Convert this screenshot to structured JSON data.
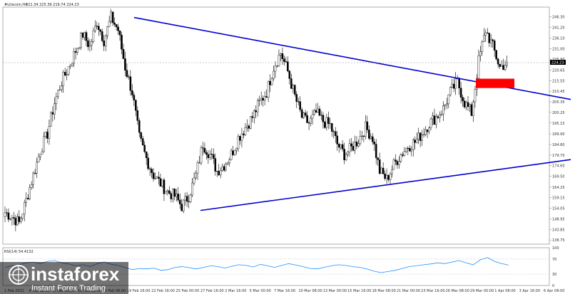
{
  "header": {
    "symbol": "#Litecoin,H4",
    "ohlc": "221.34 225.39 219.74 224.23"
  },
  "rsi_label": "RSI(14) 54.4132",
  "watermark": {
    "brand": "instaforex",
    "tagline": "Instant Forex Trading"
  },
  "colors": {
    "background": "#ffffff",
    "candles": "#000000",
    "trendlines": "#0000cc",
    "breakout_box": "#ff0000",
    "price_line": "#999999",
    "rsi_line": "#1e90ff",
    "current_price_badge": "#000000"
  },
  "chart_data": [
    {
      "type": "candlestick",
      "title": "#Litecoin,H4",
      "ylim": [
        136.75,
        251.0
      ],
      "y_ticks": [
        "246.30",
        "241.20",
        "236.10",
        "231.00",
        "225.90",
        "220.65",
        "215.55",
        "210.45",
        "205.35",
        "200.25",
        "195.15",
        "189.90",
        "184.80",
        "179.70",
        "174.60",
        "169.50",
        "164.25",
        "159.15",
        "154.05",
        "148.95",
        "143.85",
        "138.75"
      ],
      "current_price": "224.23",
      "x_ticks": [
        "1 Feb 2021",
        "4 Feb 16:00",
        "8 Feb 08:00",
        "10 Feb 16:00",
        "16 Feb 08:00",
        "19 Feb 16:00",
        "22 Feb 16:00",
        "25 Feb 00:00",
        "27 Feb 16:00",
        "2 Mar 16:00",
        "5 Mar 00:00",
        "7 Mar 16:00",
        "10 Mar 08:00",
        "13 Mar 00:00",
        "15 Mar 16:00",
        "18 Mar 08:00",
        "21 Mar 00:00",
        "23 Mar 16:00",
        "26 Mar 08:00",
        "29 Mar 00:00",
        "1 Apr 08:00",
        "3 Apr 16:00",
        "6 Apr 08:00"
      ],
      "close_path": [
        152,
        150,
        147,
        158,
        170,
        182,
        190,
        205,
        215,
        222,
        230,
        238,
        232,
        244,
        235,
        246,
        240,
        222,
        210,
        188,
        178,
        170,
        166,
        162,
        160,
        155,
        160,
        170,
        185,
        180,
        172,
        175,
        180,
        188,
        193,
        198,
        205,
        210,
        222,
        229,
        220,
        208,
        198,
        195,
        200,
        196,
        194,
        185,
        180,
        183,
        187,
        193,
        188,
        172,
        168,
        175,
        180,
        184,
        186,
        190,
        195,
        198,
        202,
        210,
        215,
        205,
        200,
        225,
        240,
        232,
        222,
        224.23
      ],
      "trendlines": [
        {
          "name": "descending resistance",
          "from": {
            "x": "19 Feb 08:00",
            "y": 246.0
          },
          "to": {
            "x": "8 Apr 2021",
            "y": 206.5
          }
        },
        {
          "name": "ascending support",
          "from": {
            "x": "27 Feb 16:00",
            "y": 153.0
          },
          "to": {
            "x": "8 Apr 2021",
            "y": 177.5
          }
        }
      ],
      "breakout_zone": {
        "y_low": 212.0,
        "y_high": 216.5,
        "x_from": "4 Apr 2021",
        "x_to": "7 Apr 2021"
      }
    },
    {
      "type": "line",
      "title": "RSI(14) 54.4132",
      "ylim": [
        0,
        100
      ],
      "y_ticks": [
        "100",
        "70",
        "30",
        "0"
      ],
      "values": [
        48,
        52,
        55,
        60,
        62,
        58,
        64,
        66,
        60,
        57,
        52,
        55,
        50,
        58,
        62,
        56,
        53,
        47,
        42,
        45,
        44,
        46,
        40,
        42,
        48,
        50,
        47,
        44,
        48,
        52,
        50,
        46,
        51,
        55,
        53,
        49,
        56,
        52,
        48,
        53,
        58,
        54,
        50,
        45,
        44,
        48,
        52,
        55,
        53,
        50,
        48,
        44,
        38,
        34,
        37,
        40,
        45,
        50,
        52,
        55,
        57,
        60,
        58,
        62,
        66,
        60,
        55,
        68,
        74,
        64,
        58,
        54
      ]
    }
  ]
}
